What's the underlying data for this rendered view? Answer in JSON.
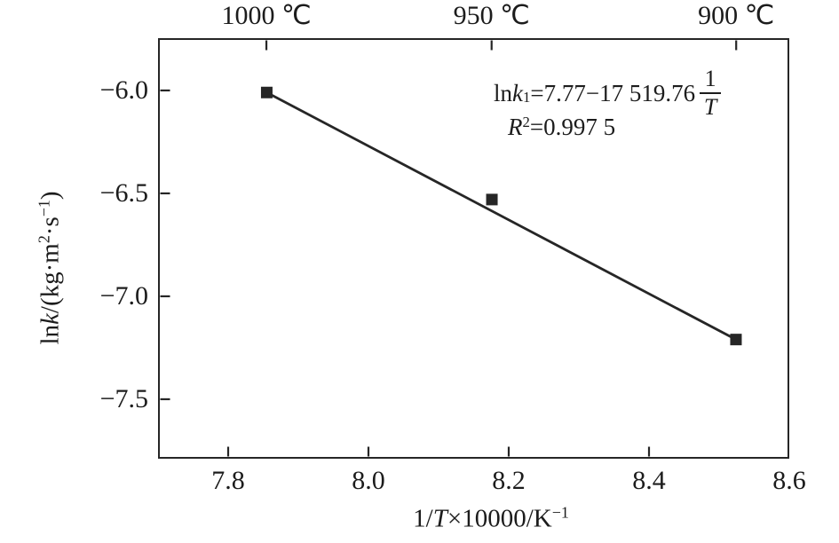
{
  "figure": {
    "background": "#ffffff",
    "ink_color": "#262626"
  },
  "axes": {
    "x_title_parts": {
      "p1": "1/",
      "t": "T",
      "p2": "×10000/K",
      "sup": "−1"
    },
    "y_title_parts": {
      "p1": "ln",
      "k": "k",
      "p2": "/(kg·m",
      "sup1": "2",
      "p3": "·s",
      "sup2": "−1",
      "p4": ")"
    }
  },
  "annotation": {
    "eq_ln": "ln ",
    "eq_k": "k",
    "eq_k_sub": "1",
    "eq_body": "=7.77−17 519.76",
    "frac_num": "1",
    "frac_den": "T",
    "r": "R",
    "r_sup": "2",
    "r_value": "=0.997 5"
  },
  "chart_data": {
    "type": "scatter",
    "title": "",
    "xlabel": "1/T×10000/K−1",
    "ylabel": "lnk/(kg·m2·s−1)",
    "xlim": [
      7.7,
      8.6
    ],
    "ylim": [
      -7.789,
      -5.746
    ],
    "grid": false,
    "legend": "none",
    "x_ticks": [
      {
        "value": 7.8,
        "label": "7.8",
        "mark": true
      },
      {
        "value": 8.0,
        "label": "8.0",
        "mark": true
      },
      {
        "value": 8.2,
        "label": "8.2",
        "mark": true
      },
      {
        "value": 8.4,
        "label": "8.4",
        "mark": true
      },
      {
        "value": 8.6,
        "label": "8.6",
        "mark": false
      }
    ],
    "y_ticks": [
      {
        "value": -6.0,
        "label": "−6.0",
        "mark": true
      },
      {
        "value": -6.5,
        "label": "−6.5",
        "mark": true
      },
      {
        "value": -7.0,
        "label": "−7.0",
        "mark": true
      },
      {
        "value": -7.5,
        "label": "−7.5",
        "mark": true
      }
    ],
    "top_axis_ticks": [
      {
        "value": 7.8545,
        "label": "1000 ℃"
      },
      {
        "value": 8.1756,
        "label": "950 ℃"
      },
      {
        "value": 8.5243,
        "label": "900 ℃"
      }
    ],
    "points": [
      {
        "x": 7.855,
        "y": -6.01
      },
      {
        "x": 8.176,
        "y": -6.53
      },
      {
        "x": 8.524,
        "y": -7.21
      }
    ],
    "fit_line": {
      "x1": 7.855,
      "y1": -6.01,
      "x2": 8.524,
      "y2": -7.21
    },
    "equation_text": "ln k1=7.77−17 519.76 (1/T)",
    "r_squared_text": "R2=0.997 5",
    "marker": {
      "shape": "square",
      "size": 13,
      "color": "#262626"
    },
    "line_color": "#262626",
    "line_width": 2.8,
    "tick_length": 11,
    "tick_width": 2.2
  }
}
